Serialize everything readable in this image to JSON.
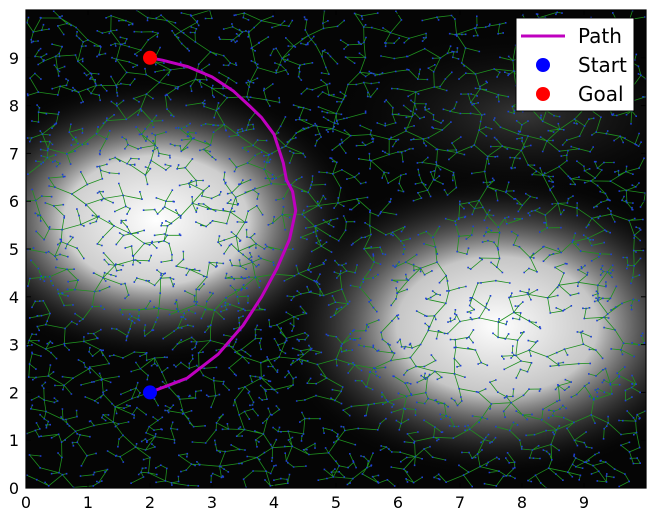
{
  "chart_data": {
    "type": "scatter",
    "title": "",
    "xlabel": "",
    "ylabel": "",
    "xlim": [
      0,
      10
    ],
    "ylim": [
      0,
      10
    ],
    "x_ticks": [
      "0",
      "1",
      "2",
      "3",
      "4",
      "5",
      "6",
      "7",
      "8",
      "9"
    ],
    "y_ticks": [
      "0",
      "1",
      "2",
      "3",
      "4",
      "5",
      "6",
      "7",
      "8",
      "9"
    ],
    "grid": false,
    "background": "grayscale cost field: bright blobs near (2,5.5) and (7.5,3.5), dark elsewhere",
    "cost_peaks": [
      {
        "x": 2.1,
        "y": 5.6
      },
      {
        "x": 7.6,
        "y": 3.4
      }
    ],
    "tree": {
      "root": [
        2,
        2
      ],
      "node_color": "#1f3fd6",
      "edge_color": "#1f8f1f"
    },
    "path": {
      "name": "Path",
      "color": "#bf00bf",
      "x": [
        2.0,
        2.6,
        3.1,
        3.5,
        3.8,
        4.05,
        4.25,
        4.35,
        4.3,
        4.2,
        4.15,
        4.0,
        3.8,
        3.6,
        3.35,
        3.0,
        2.6,
        2.2,
        2.0
      ],
      "y": [
        2.0,
        2.3,
        2.8,
        3.4,
        4.0,
        4.6,
        5.2,
        5.8,
        6.2,
        6.45,
        6.8,
        7.4,
        7.75,
        8.0,
        8.3,
        8.6,
        8.82,
        8.95,
        9.0
      ]
    },
    "start": {
      "name": "Start",
      "x": 2,
      "y": 2,
      "color": "#0000ff"
    },
    "goal": {
      "name": "Goal",
      "x": 2,
      "y": 9,
      "color": "#ff0000"
    },
    "legend": {
      "placement": "top-right",
      "entries": [
        {
          "label": "Path",
          "kind": "line",
          "color": "#bf00bf"
        },
        {
          "label": "Start",
          "kind": "marker",
          "color": "#0000ff"
        },
        {
          "label": "Goal",
          "kind": "marker",
          "color": "#ff0000"
        }
      ]
    }
  }
}
